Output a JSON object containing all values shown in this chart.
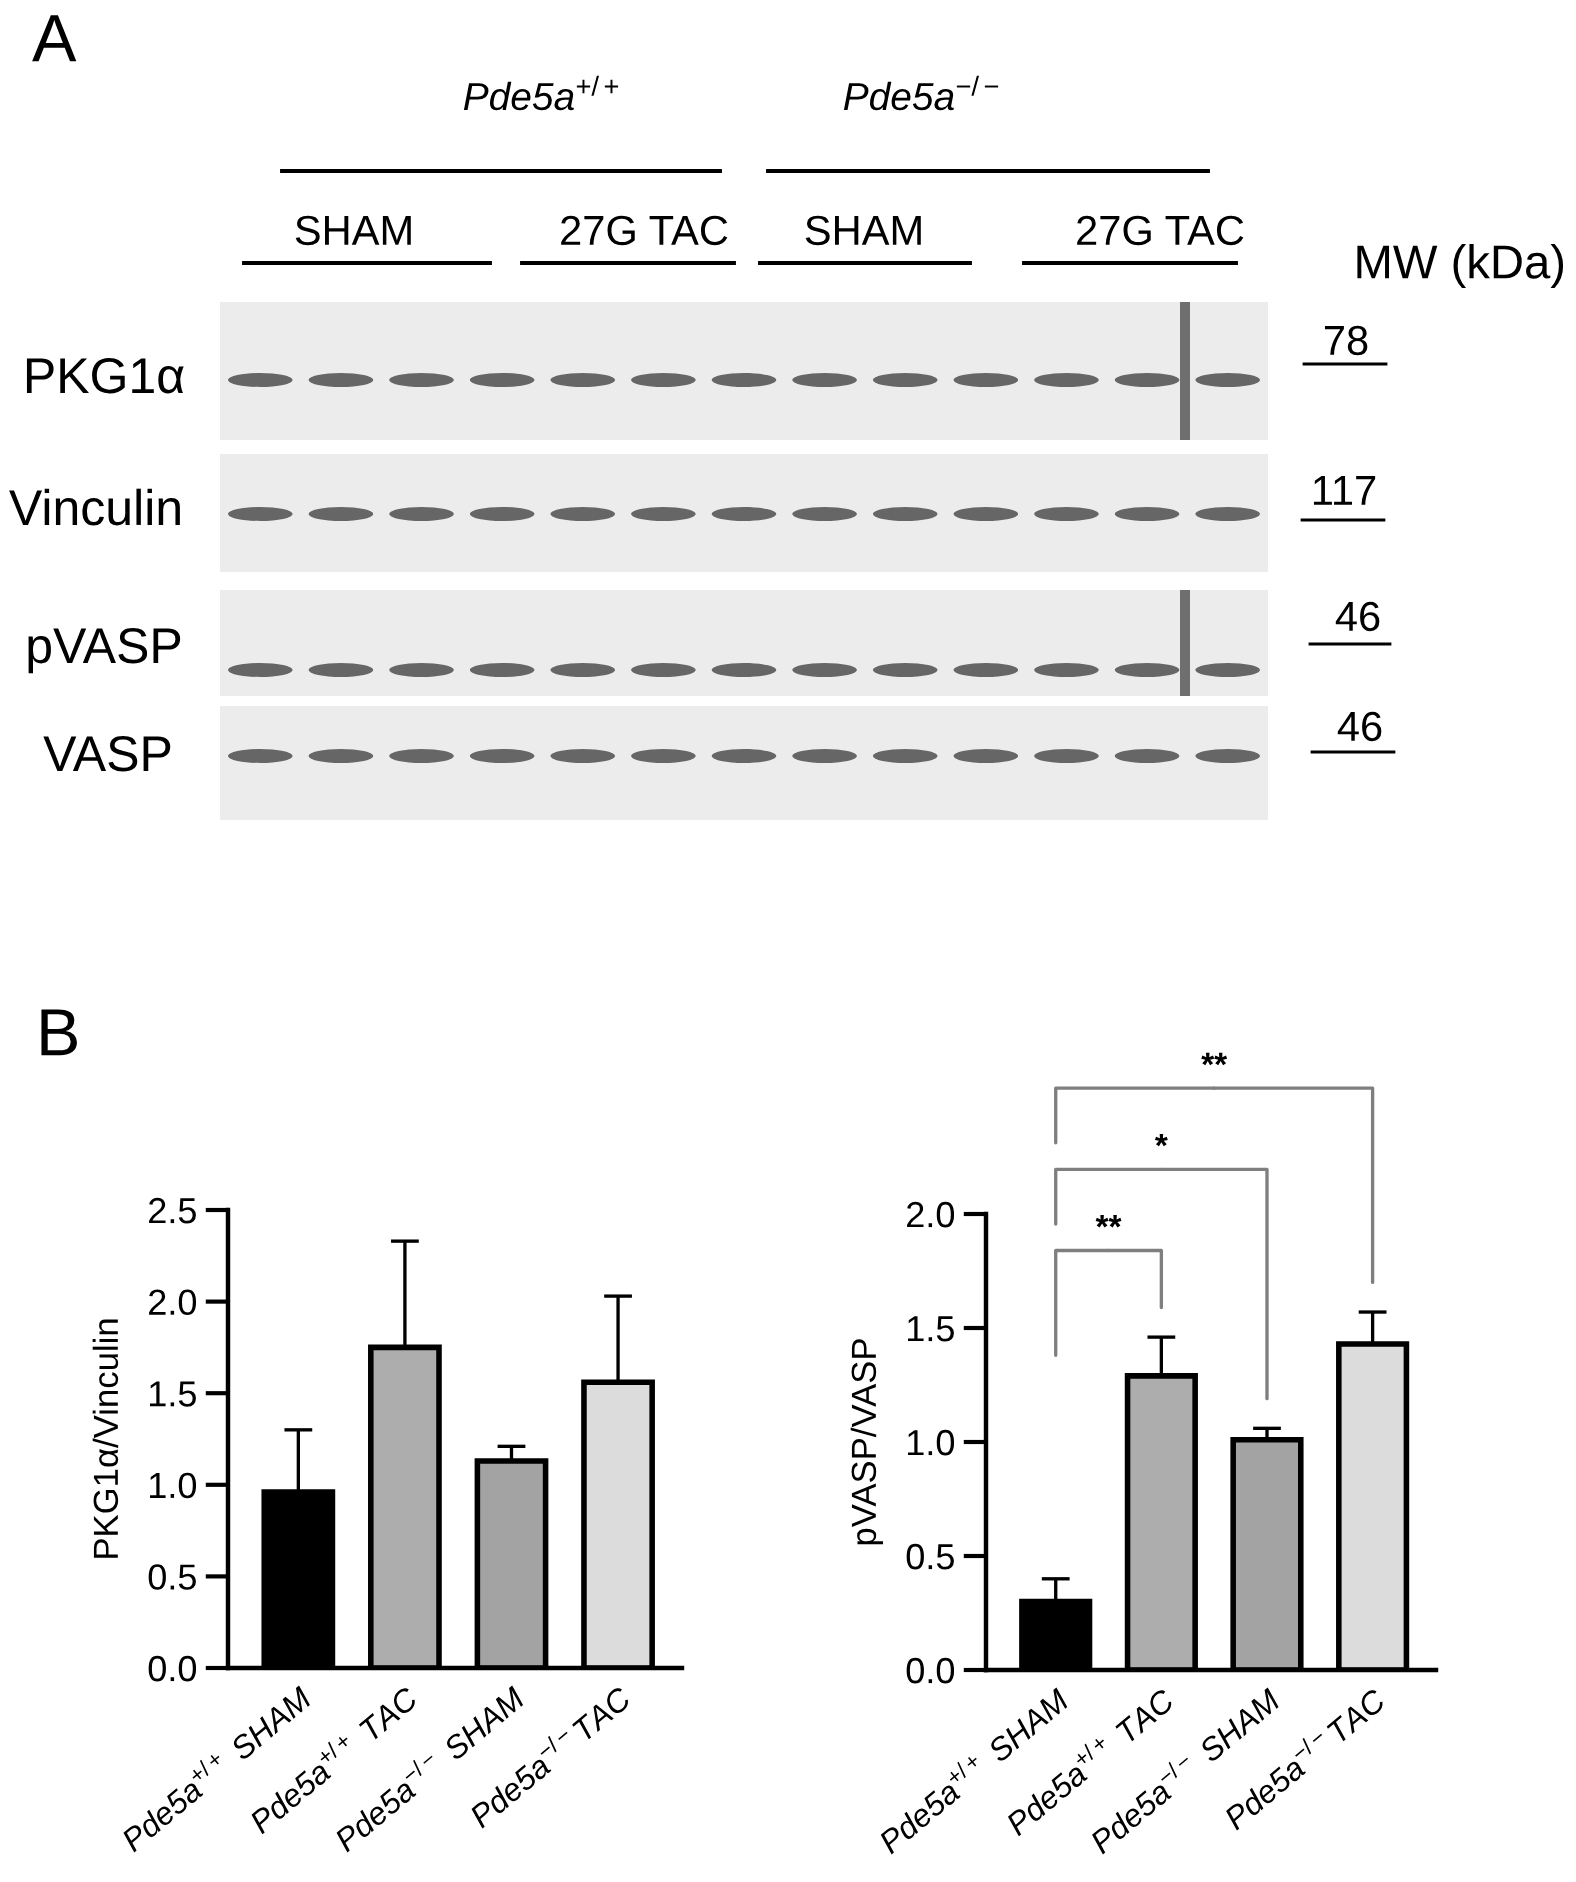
{
  "chart_data": [
    {
      "type": "other",
      "title": "A",
      "annotations": [
        "Pde5a$^{+/+}$",
        "Pde5a$^{−/−}$",
        "SHAM",
        "27G TAC",
        "SHAM",
        "27G TAC",
        "MW (kDa)",
        "PKG1α",
        "Vinculin",
        "pVASP",
        "VASP",
        "78",
        "117",
        "46",
        "46"
      ]
    },
    {
      "type": "bar",
      "title": "B",
      "ylabel": "PKG1α/Vinculin",
      "categories": [
        "Pde5a$^{+/+}$ SHAM",
        "Pde5a$^{+/+}$ TAC",
        "Pde5a$^{−/−}$ SHAM",
        "Pde5a$^{−/−}$TAC"
      ],
      "values": [
        0.96,
        1.75,
        1.13,
        1.56
      ],
      "errors": [
        [
          0.96,
          1.3
        ],
        [
          1.75,
          2.33
        ],
        [
          1.13,
          1.21
        ],
        [
          1.56,
          2.03
        ]
      ],
      "colors": [
        "#000000",
        "#adadad",
        "#a3a3a3",
        "#dcdcdc"
      ],
      "ylim": [
        0,
        2.5
      ],
      "yticks": [
        {
          "value": 0,
          "label": "0.0"
        },
        {
          "value": 0.5,
          "label": "0.5"
        },
        {
          "value": 1,
          "label": "1.0"
        },
        {
          "value": 1.5,
          "label": "1.5"
        },
        {
          "value": 2,
          "label": "2.0"
        },
        {
          "value": 2.5,
          "label": "2.5"
        }
      ]
    },
    {
      "type": "bar",
      "ylabel": "pVASP/VASP",
      "categories": [
        "Pde5a$^{+/+}$ SHAM",
        "Pde5a$^{+/+}$ TAC",
        "Pde5a$^{−/−}$ SHAM",
        "Pde5a$^{−/−}$TAC"
      ],
      "values": [
        0.3,
        1.29,
        1.01,
        1.43
      ],
      "errors": [
        [
          0.3,
          0.4
        ],
        [
          1.29,
          1.46
        ],
        [
          1.01,
          1.06
        ],
        [
          1.43,
          1.57
        ]
      ],
      "colors": [
        "#000000",
        "#adadad",
        "#a3a3a3",
        "#dcdcdc"
      ],
      "ylim": [
        0,
        2
      ],
      "yticks": [
        {
          "value": 0,
          "label": "0.0"
        },
        {
          "value": 0.5,
          "label": "0.5"
        },
        {
          "value": 1,
          "label": "1.0"
        },
        {
          "value": 1.5,
          "label": "1.5"
        },
        {
          "value": 2,
          "label": "2.0"
        }
      ],
      "annotations": [
        "**",
        "*",
        "**"
      ]
    }
  ]
}
